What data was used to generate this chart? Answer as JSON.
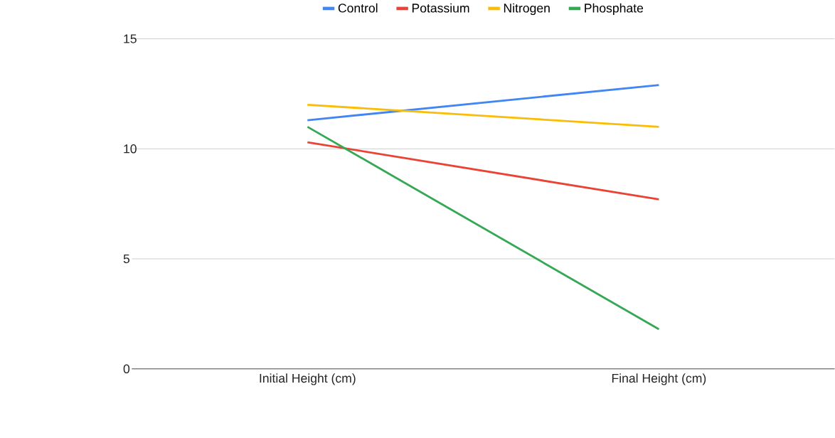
{
  "chart_data": {
    "type": "line",
    "categories": [
      "Initial Height (cm)",
      "Final Height (cm)"
    ],
    "series": [
      {
        "name": "Control",
        "color": "#4285f4",
        "values": [
          11.3,
          12.9
        ]
      },
      {
        "name": "Potassium",
        "color": "#ea4335",
        "values": [
          10.3,
          7.7
        ]
      },
      {
        "name": "Nitrogen",
        "color": "#fbbc04",
        "values": [
          12.0,
          11.0
        ]
      },
      {
        "name": "Phosphate",
        "color": "#34a853",
        "values": [
          11.0,
          1.8
        ]
      }
    ],
    "ylim": [
      0,
      15
    ],
    "yticks": [
      0,
      5,
      10,
      15
    ],
    "grid": "y",
    "legend": "top",
    "marker": "none",
    "line_style": "solid"
  }
}
